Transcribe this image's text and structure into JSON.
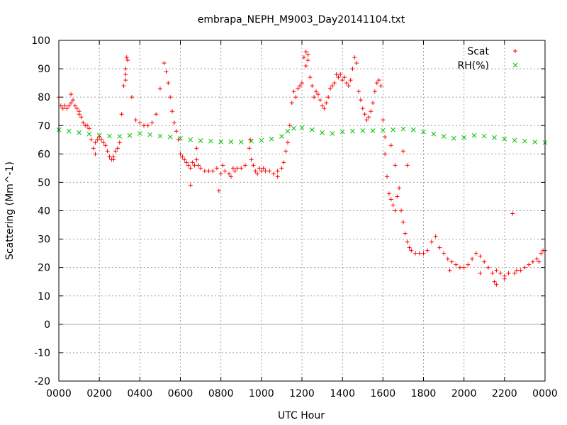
{
  "chart_data": {
    "type": "scatter",
    "title": "embrapa_NEPH_M9003_Day20141104.txt",
    "xlabel": "UTC Hour",
    "ylabel": "Scattering (Mm^-1)",
    "xlim": [
      0,
      2400
    ],
    "ylim": [
      -20,
      100
    ],
    "xticks": [
      "0000",
      "0200",
      "0400",
      "0600",
      "0800",
      "1000",
      "1200",
      "1400",
      "1600",
      "1800",
      "2000",
      "2200",
      "0000"
    ],
    "yticks": [
      "-20",
      "-10",
      "0",
      "10",
      "20",
      "30",
      "40",
      "50",
      "60",
      "70",
      "80",
      "90",
      "100"
    ],
    "grid": true,
    "legend_position": "top-right",
    "colors": {
      "scat": "#ff0000",
      "rh": "#00c000"
    },
    "series": [
      {
        "name": "Scat",
        "marker": "+",
        "points": [
          [
            0,
            80
          ],
          [
            10,
            77
          ],
          [
            20,
            76
          ],
          [
            30,
            77
          ],
          [
            40,
            76
          ],
          [
            50,
            77
          ],
          [
            60,
            78
          ],
          [
            70,
            79
          ],
          [
            80,
            77
          ],
          [
            90,
            76
          ],
          [
            100,
            75
          ],
          [
            110,
            73
          ],
          [
            120,
            71
          ],
          [
            130,
            70
          ],
          [
            140,
            70
          ],
          [
            150,
            69
          ],
          [
            160,
            65
          ],
          [
            170,
            62
          ],
          [
            180,
            64
          ],
          [
            190,
            65
          ],
          [
            200,
            66
          ],
          [
            210,
            65
          ],
          [
            220,
            64
          ],
          [
            230,
            63
          ],
          [
            240,
            61
          ],
          [
            250,
            59
          ],
          [
            260,
            58
          ],
          [
            270,
            59
          ],
          [
            280,
            61
          ],
          [
            290,
            62
          ],
          [
            300,
            64
          ],
          [
            310,
            74
          ],
          [
            320,
            84
          ],
          [
            330,
            88
          ],
          [
            340,
            93
          ],
          [
            360,
            80
          ],
          [
            380,
            72
          ],
          [
            400,
            71
          ],
          [
            420,
            70
          ],
          [
            440,
            70
          ],
          [
            460,
            71
          ],
          [
            480,
            74
          ],
          [
            500,
            83
          ],
          [
            520,
            92
          ],
          [
            530,
            89
          ],
          [
            540,
            85
          ],
          [
            550,
            80
          ],
          [
            560,
            75
          ],
          [
            570,
            71
          ],
          [
            580,
            68
          ],
          [
            590,
            65
          ],
          [
            600,
            60
          ],
          [
            610,
            59
          ],
          [
            620,
            58
          ],
          [
            630,
            57
          ],
          [
            640,
            56
          ],
          [
            650,
            55
          ],
          [
            660,
            57
          ],
          [
            670,
            56
          ],
          [
            680,
            58
          ],
          [
            690,
            56
          ],
          [
            700,
            55
          ],
          [
            720,
            54
          ],
          [
            740,
            54
          ],
          [
            760,
            54
          ],
          [
            780,
            55
          ],
          [
            800,
            53
          ],
          [
            810,
            56
          ],
          [
            820,
            54
          ],
          [
            840,
            53
          ],
          [
            850,
            52
          ],
          [
            860,
            55
          ],
          [
            870,
            54
          ],
          [
            880,
            55
          ],
          [
            900,
            55
          ],
          [
            920,
            56
          ],
          [
            940,
            62
          ],
          [
            950,
            58
          ],
          [
            960,
            56
          ],
          [
            970,
            54
          ],
          [
            980,
            53
          ],
          [
            990,
            55
          ],
          [
            1000,
            54
          ],
          [
            1010,
            55
          ],
          [
            1020,
            54
          ],
          [
            1040,
            54
          ],
          [
            1060,
            53
          ],
          [
            1080,
            54
          ],
          [
            1100,
            55
          ],
          [
            1110,
            57
          ],
          [
            1120,
            61
          ],
          [
            1130,
            64
          ],
          [
            1140,
            70
          ],
          [
            1150,
            78
          ],
          [
            1160,
            82
          ],
          [
            1170,
            80
          ],
          [
            1180,
            83
          ],
          [
            1190,
            84
          ],
          [
            1200,
            85
          ],
          [
            1210,
            94
          ],
          [
            1220,
            91
          ],
          [
            1230,
            93
          ],
          [
            1240,
            87
          ],
          [
            1250,
            84
          ],
          [
            1260,
            80
          ],
          [
            1270,
            82
          ],
          [
            1280,
            81
          ],
          [
            1290,
            79
          ],
          [
            1300,
            77
          ],
          [
            1310,
            76
          ],
          [
            1320,
            78
          ],
          [
            1330,
            80
          ],
          [
            1340,
            83
          ],
          [
            1350,
            84
          ],
          [
            1360,
            85
          ],
          [
            1370,
            88
          ],
          [
            1380,
            87
          ],
          [
            1390,
            88
          ],
          [
            1400,
            86
          ],
          [
            1410,
            87
          ],
          [
            1420,
            85
          ],
          [
            1430,
            84
          ],
          [
            1440,
            86
          ],
          [
            1450,
            90
          ],
          [
            1460,
            94
          ],
          [
            1470,
            92
          ],
          [
            1480,
            82
          ],
          [
            1490,
            79
          ],
          [
            1500,
            76
          ],
          [
            1510,
            74
          ],
          [
            1520,
            72
          ],
          [
            1530,
            73
          ],
          [
            1540,
            75
          ],
          [
            1550,
            78
          ],
          [
            1560,
            82
          ],
          [
            1570,
            85
          ],
          [
            1580,
            86
          ],
          [
            1590,
            84
          ],
          [
            1600,
            72
          ],
          [
            1610,
            60
          ],
          [
            1620,
            52
          ],
          [
            1630,
            46
          ],
          [
            1640,
            44
          ],
          [
            1650,
            42
          ],
          [
            1660,
            40
          ],
          [
            1670,
            45
          ],
          [
            1680,
            48
          ],
          [
            1690,
            40
          ],
          [
            1700,
            36
          ],
          [
            1710,
            32
          ],
          [
            1720,
            29
          ],
          [
            1730,
            27
          ],
          [
            1740,
            26
          ],
          [
            1760,
            25
          ],
          [
            1780,
            25
          ],
          [
            1800,
            25
          ],
          [
            1820,
            26
          ],
          [
            1840,
            29
          ],
          [
            1860,
            31
          ],
          [
            1880,
            27
          ],
          [
            1900,
            25
          ],
          [
            1920,
            23
          ],
          [
            1940,
            22
          ],
          [
            1960,
            21
          ],
          [
            1980,
            20
          ],
          [
            2000,
            20
          ],
          [
            2020,
            21
          ],
          [
            2040,
            23
          ],
          [
            2060,
            25
          ],
          [
            2080,
            24
          ],
          [
            2100,
            22
          ],
          [
            2120,
            20
          ],
          [
            2140,
            18
          ],
          [
            2150,
            15
          ],
          [
            2160,
            19
          ],
          [
            2180,
            18
          ],
          [
            2200,
            17
          ],
          [
            2220,
            18
          ],
          [
            2240,
            39
          ],
          [
            2250,
            18
          ],
          [
            2260,
            19
          ],
          [
            2280,
            19
          ],
          [
            2300,
            20
          ],
          [
            2320,
            21
          ],
          [
            2340,
            22
          ],
          [
            2360,
            23
          ],
          [
            2370,
            22
          ],
          [
            2380,
            25
          ],
          [
            2390,
            26
          ],
          [
            2400,
            26
          ],
          [
            335,
            94
          ],
          [
            330,
            86
          ],
          [
            330,
            90
          ],
          [
            60,
            81
          ],
          [
            100,
            74
          ],
          [
            180,
            60
          ],
          [
            270,
            58
          ],
          [
            650,
            49
          ],
          [
            680,
            62
          ],
          [
            790,
            47
          ],
          [
            945,
            65
          ],
          [
            1080,
            52
          ],
          [
            1610,
            66
          ],
          [
            1640,
            63
          ],
          [
            1660,
            56
          ],
          [
            1700,
            61
          ],
          [
            1720,
            56
          ],
          [
            1930,
            19
          ],
          [
            2080,
            18
          ],
          [
            2160,
            14
          ],
          [
            2200,
            16
          ],
          [
            1230,
            95
          ],
          [
            1220,
            96
          ]
        ]
      },
      {
        "name": "RH(%)",
        "marker": "x",
        "points": [
          [
            0,
            68.5
          ],
          [
            50,
            68.0
          ],
          [
            100,
            67.5
          ],
          [
            150,
            67.0
          ],
          [
            200,
            66.5
          ],
          [
            250,
            66.3
          ],
          [
            300,
            66.2
          ],
          [
            350,
            66.5
          ],
          [
            400,
            67.2
          ],
          [
            450,
            66.8
          ],
          [
            500,
            66.3
          ],
          [
            550,
            66.0
          ],
          [
            600,
            65.5
          ],
          [
            650,
            65.0
          ],
          [
            700,
            64.7
          ],
          [
            750,
            64.5
          ],
          [
            800,
            64.3
          ],
          [
            850,
            64.3
          ],
          [
            900,
            64.2
          ],
          [
            950,
            64.5
          ],
          [
            1000,
            64.8
          ],
          [
            1050,
            65.3
          ],
          [
            1100,
            66.2
          ],
          [
            1130,
            68.0
          ],
          [
            1160,
            69.0
          ],
          [
            1200,
            69.2
          ],
          [
            1250,
            68.5
          ],
          [
            1300,
            67.5
          ],
          [
            1350,
            67.2
          ],
          [
            1400,
            67.8
          ],
          [
            1450,
            68.0
          ],
          [
            1500,
            68.2
          ],
          [
            1550,
            68.2
          ],
          [
            1600,
            68.3
          ],
          [
            1650,
            68.5
          ],
          [
            1700,
            68.8
          ],
          [
            1750,
            68.5
          ],
          [
            1800,
            67.8
          ],
          [
            1850,
            67.0
          ],
          [
            1900,
            66.2
          ],
          [
            1950,
            65.5
          ],
          [
            2000,
            65.8
          ],
          [
            2050,
            66.5
          ],
          [
            2100,
            66.3
          ],
          [
            2150,
            65.8
          ],
          [
            2200,
            65.3
          ],
          [
            2250,
            64.8
          ],
          [
            2300,
            64.5
          ],
          [
            2350,
            64.2
          ],
          [
            2400,
            64.0
          ]
        ]
      }
    ]
  }
}
